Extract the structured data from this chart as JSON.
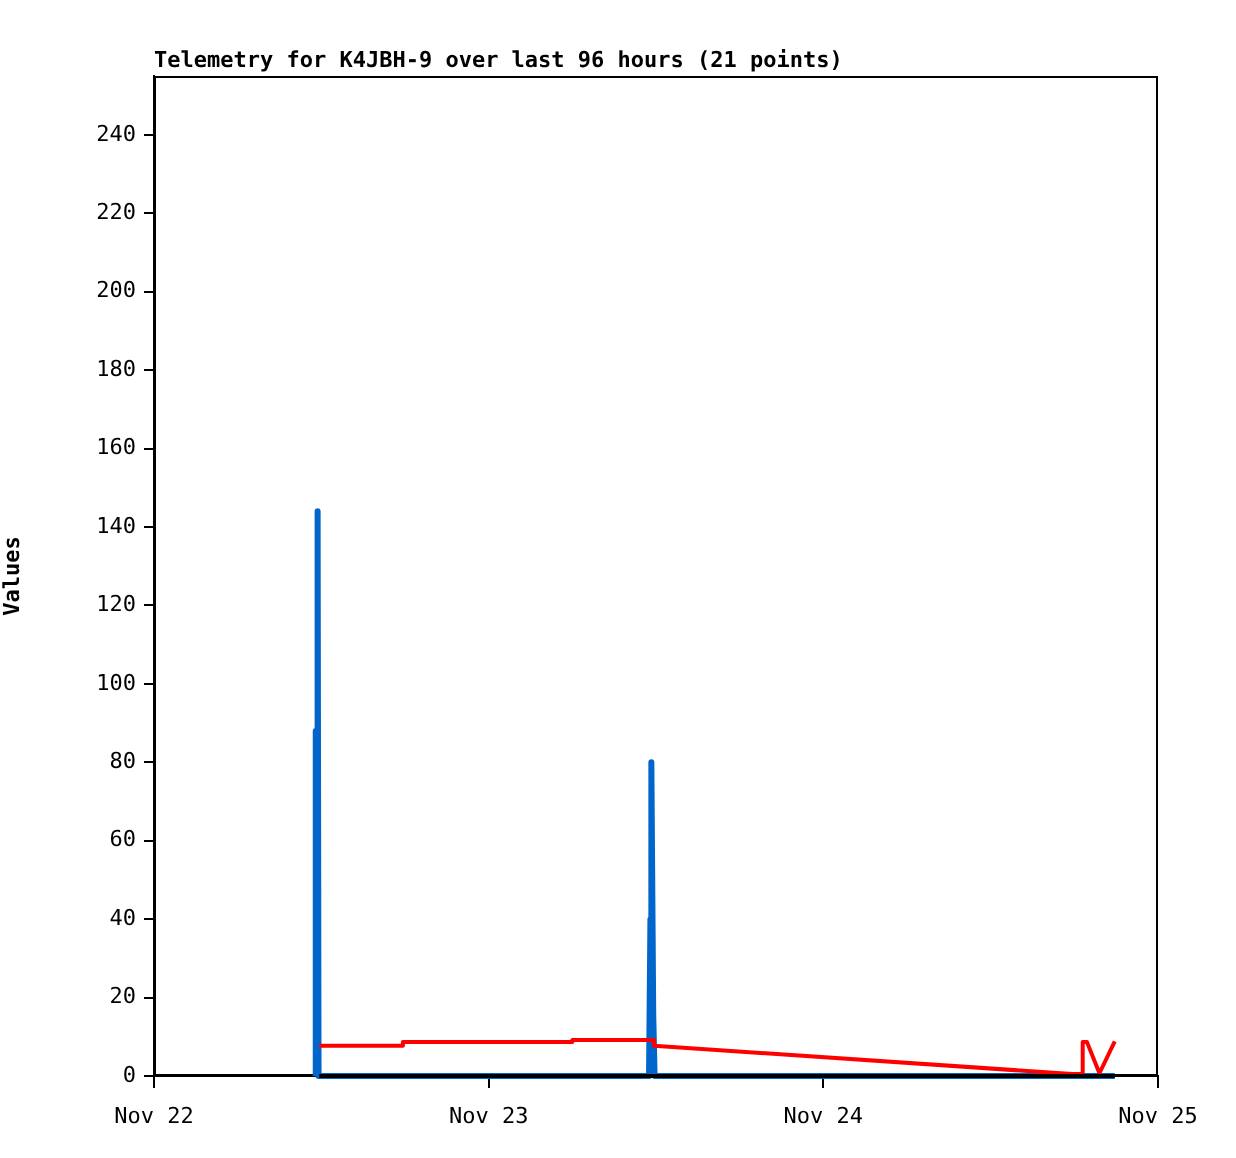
{
  "chart_data": {
    "type": "line",
    "title": "Telemetry for K4JBH-9 over last 96 hours (21 points)",
    "ylabel": "Values",
    "xlim": [
      "--11-22T00:00",
      "--11-25T00:00"
    ],
    "xticks": [
      {
        "value": "--11-22T00:00",
        "label": "Nov 22"
      },
      {
        "value": "--11-23T00:00",
        "label": "Nov 23"
      },
      {
        "value": "--11-24T00:00",
        "label": "Nov 24"
      },
      {
        "value": "--11-25T00:00",
        "label": "Nov 25"
      }
    ],
    "ylim": [
      0,
      255
    ],
    "yticks": [
      0,
      20,
      40,
      60,
      80,
      100,
      120,
      140,
      160,
      180,
      200,
      220,
      240
    ],
    "grid": false,
    "legend": false,
    "marker": "none",
    "series": [
      {
        "color": "#0066cc",
        "x": [
          "--11-22T11:36",
          "--11-22T11:36",
          "--11-22T11:38",
          "--11-22T11:44",
          "--11-22T11:48",
          "--11-23T11:30",
          "--11-23T11:36",
          "--11-23T11:40",
          "--11-23T11:48",
          "--11-23T11:54",
          "--11-24T20:54"
        ],
        "values": [
          0,
          88,
          31,
          144,
          0,
          0,
          40,
          80,
          16,
          0,
          0
        ]
      },
      {
        "color": "#ff0000",
        "x": [
          "--11-22T11:51",
          "--11-22T17:51",
          "--11-22T17:51",
          "--11-23T06:00",
          "--11-23T06:00",
          "--11-23T11:51",
          "--11-23T11:51",
          "--11-24T17:51",
          "--11-24T18:36",
          "--11-24T18:36",
          "--11-24T18:54",
          "--11-24T19:48",
          "--11-24T20:54"
        ],
        "values": [
          7.7,
          7.7,
          8.7,
          8.7,
          9.2,
          9.2,
          7.7,
          0.5,
          0.5,
          8.7,
          8.7,
          0.7,
          8.8
        ]
      },
      {
        "color": "#000000",
        "x": [
          "--11-22T11:51",
          "--11-24T20:54"
        ],
        "values": [
          0,
          0
        ]
      }
    ]
  }
}
